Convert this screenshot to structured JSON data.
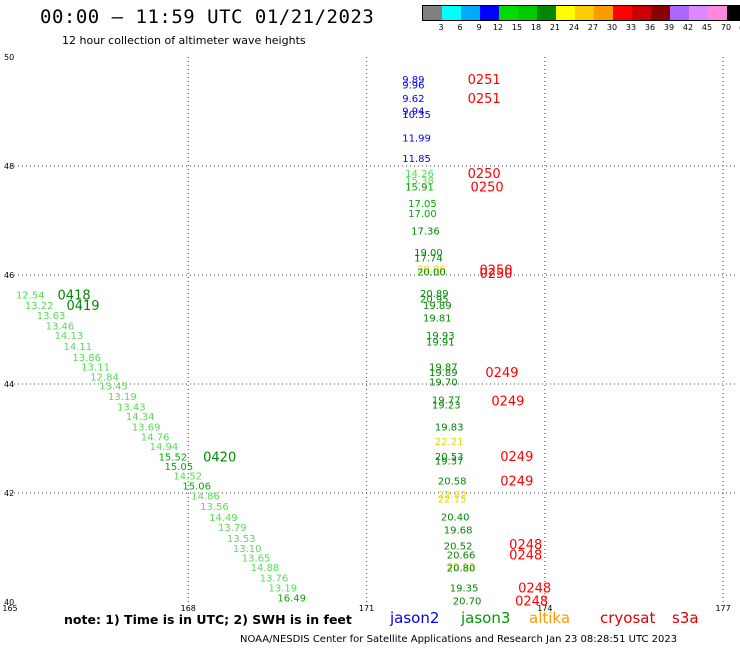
{
  "header": {
    "title": "00:00 – 11:59 UTC 01/21/2023",
    "subtitle": "12 hour collection of altimeter wave heights"
  },
  "legend": {
    "colors": [
      "#808080",
      "#00ffff",
      "#00aaff",
      "#0000ff",
      "#00dd00",
      "#00cc00",
      "#008800",
      "#ffff00",
      "#ffcc00",
      "#ff9900",
      "#ff0000",
      "#cc0000",
      "#880000",
      "#aa66ff",
      "#dd88ff",
      "#ff88dd",
      "#000000"
    ],
    "labels": [
      "3",
      "6",
      "9",
      "12",
      "15",
      "18",
      "21",
      "24",
      "27",
      "30",
      "33",
      "36",
      "39",
      "42",
      "45",
      "70",
      "(ft)"
    ]
  },
  "footer": {
    "note": "note:  1) Time is in UTC;  2) SWH is in feet",
    "credit": "NOAA/NESDIS Center for Satellite Applications and Research    Jan 23 08:28:51 UTC 2023"
  },
  "satellites": [
    {
      "name": "jason2",
      "color": "#0000ff"
    },
    {
      "name": "jason3",
      "color": "#009900"
    },
    {
      "name": "altika",
      "color": "#ff9900"
    },
    {
      "name": "cryosat",
      "color": "#dd0000"
    },
    {
      "name": "s3a",
      "color": "#dd0000"
    }
  ],
  "chart_data": {
    "type": "scatter",
    "xlabel": "",
    "ylabel": "",
    "xlim": [
      165,
      177.2
    ],
    "ylim": [
      40,
      50
    ],
    "x_ticks": [
      165,
      168,
      171,
      174,
      177
    ],
    "y_ticks": [
      40,
      42,
      44,
      46,
      48,
      50
    ],
    "grid": true,
    "points": [
      {
        "lon": 171.6,
        "lat": 49.6,
        "value": "9.89",
        "color": "#0000ff"
      },
      {
        "lon": 171.6,
        "lat": 49.5,
        "value": "9.96",
        "color": "#0000ff"
      },
      {
        "lon": 171.6,
        "lat": 49.25,
        "value": "9.62",
        "color": "#0000ff"
      },
      {
        "lon": 171.6,
        "lat": 49.02,
        "value": "9.94",
        "color": "#0000ff"
      },
      {
        "lon": 171.6,
        "lat": 48.95,
        "value": "10.35",
        "color": "#0000ff"
      },
      {
        "lon": 171.6,
        "lat": 48.52,
        "value": "11.99",
        "color": "#0000ff"
      },
      {
        "lon": 171.6,
        "lat": 48.15,
        "value": "11.85",
        "color": "#0000ff"
      },
      {
        "lon": 171.65,
        "lat": 47.87,
        "value": "14.26",
        "color": "#55dd55"
      },
      {
        "lon": 171.65,
        "lat": 47.74,
        "value": "15.38",
        "color": "#55dd55"
      },
      {
        "lon": 171.65,
        "lat": 47.62,
        "value": "15.91",
        "color": "#00aa00"
      },
      {
        "lon": 171.7,
        "lat": 47.32,
        "value": "17.05",
        "color": "#00aa00"
      },
      {
        "lon": 171.7,
        "lat": 47.14,
        "value": "17.00",
        "color": "#00aa00"
      },
      {
        "lon": 171.75,
        "lat": 46.82,
        "value": "17.36",
        "color": "#008800"
      },
      {
        "lon": 171.8,
        "lat": 46.42,
        "value": "19.00",
        "color": "#008800"
      },
      {
        "lon": 171.8,
        "lat": 46.32,
        "value": "17.74",
        "color": "#008800"
      },
      {
        "lon": 171.85,
        "lat": 46.12,
        "value": "20.06",
        "color": "#dddd00"
      },
      {
        "lon": 171.85,
        "lat": 46.06,
        "value": "20.00",
        "color": "#008800"
      },
      {
        "lon": 171.9,
        "lat": 45.67,
        "value": "20.89",
        "color": "#008800"
      },
      {
        "lon": 171.9,
        "lat": 45.57,
        "value": "20.95",
        "color": "#008800"
      },
      {
        "lon": 171.95,
        "lat": 45.45,
        "value": "19.89",
        "color": "#008800"
      },
      {
        "lon": 171.95,
        "lat": 45.22,
        "value": "19.81",
        "color": "#008800"
      },
      {
        "lon": 172.0,
        "lat": 44.9,
        "value": "19.93",
        "color": "#008800"
      },
      {
        "lon": 172.0,
        "lat": 44.78,
        "value": "19.91",
        "color": "#008800"
      },
      {
        "lon": 172.05,
        "lat": 44.32,
        "value": "19.87",
        "color": "#008800"
      },
      {
        "lon": 172.05,
        "lat": 44.22,
        "value": "19.89",
        "color": "#008800"
      },
      {
        "lon": 172.05,
        "lat": 44.05,
        "value": "19.70",
        "color": "#008800"
      },
      {
        "lon": 172.1,
        "lat": 43.72,
        "value": "19.77",
        "color": "#008800"
      },
      {
        "lon": 172.1,
        "lat": 43.62,
        "value": "19.23",
        "color": "#008800"
      },
      {
        "lon": 172.15,
        "lat": 43.22,
        "value": "19.83",
        "color": "#008800"
      },
      {
        "lon": 172.15,
        "lat": 42.95,
        "value": "22.21",
        "color": "#dddd00"
      },
      {
        "lon": 172.15,
        "lat": 42.68,
        "value": "20.53",
        "color": "#008800"
      },
      {
        "lon": 172.15,
        "lat": 42.6,
        "value": "19.37",
        "color": "#008800"
      },
      {
        "lon": 172.2,
        "lat": 42.23,
        "value": "20.58",
        "color": "#008800"
      },
      {
        "lon": 172.2,
        "lat": 41.98,
        "value": "22.82",
        "color": "#dddd00"
      },
      {
        "lon": 172.2,
        "lat": 41.9,
        "value": "22.15",
        "color": "#dddd00"
      },
      {
        "lon": 172.25,
        "lat": 41.57,
        "value": "20.40",
        "color": "#008800"
      },
      {
        "lon": 172.3,
        "lat": 41.33,
        "value": "19.68",
        "color": "#008800"
      },
      {
        "lon": 172.3,
        "lat": 41.04,
        "value": "20.52",
        "color": "#008800"
      },
      {
        "lon": 172.35,
        "lat": 40.87,
        "value": "20.66",
        "color": "#008800"
      },
      {
        "lon": 172.35,
        "lat": 40.66,
        "value": "20.92",
        "color": "#dddd00"
      },
      {
        "lon": 172.35,
        "lat": 40.63,
        "value": "20.80",
        "color": "#008800"
      },
      {
        "lon": 172.4,
        "lat": 40.27,
        "value": "19.35",
        "color": "#008800"
      },
      {
        "lon": 172.45,
        "lat": 40.03,
        "value": "20.70",
        "color": "#008800"
      },
      {
        "lon": 165.1,
        "lat": 45.64,
        "value": "12.54",
        "color": "#55dd55"
      },
      {
        "lon": 165.25,
        "lat": 45.45,
        "value": "13.22",
        "color": "#55dd55"
      },
      {
        "lon": 165.45,
        "lat": 45.27,
        "value": "13.63",
        "color": "#55dd55"
      },
      {
        "lon": 165.6,
        "lat": 45.07,
        "value": "13.46",
        "color": "#55dd55"
      },
      {
        "lon": 165.75,
        "lat": 44.9,
        "value": "14.13",
        "color": "#55dd55"
      },
      {
        "lon": 165.9,
        "lat": 44.7,
        "value": "14.11",
        "color": "#55dd55"
      },
      {
        "lon": 166.05,
        "lat": 44.5,
        "value": "13.86",
        "color": "#55dd55"
      },
      {
        "lon": 166.2,
        "lat": 44.32,
        "value": "13.11",
        "color": "#55dd55"
      },
      {
        "lon": 166.35,
        "lat": 44.14,
        "value": "12.84",
        "color": "#55dd55"
      },
      {
        "lon": 166.5,
        "lat": 43.97,
        "value": "13.45",
        "color": "#55dd55"
      },
      {
        "lon": 166.65,
        "lat": 43.78,
        "value": "13.19",
        "color": "#55dd55"
      },
      {
        "lon": 166.8,
        "lat": 43.59,
        "value": "13.43",
        "color": "#55dd55"
      },
      {
        "lon": 166.95,
        "lat": 43.41,
        "value": "14.34",
        "color": "#55dd55"
      },
      {
        "lon": 167.05,
        "lat": 43.22,
        "value": "13.69",
        "color": "#55dd55"
      },
      {
        "lon": 167.2,
        "lat": 43.04,
        "value": "14.76",
        "color": "#55dd55"
      },
      {
        "lon": 167.35,
        "lat": 42.86,
        "value": "14.94",
        "color": "#55dd55"
      },
      {
        "lon": 167.5,
        "lat": 42.67,
        "value": "15.52",
        "color": "#00aa00"
      },
      {
        "lon": 167.6,
        "lat": 42.5,
        "value": "15.05",
        "color": "#00aa00"
      },
      {
        "lon": 167.75,
        "lat": 42.32,
        "value": "14.52",
        "color": "#55dd55"
      },
      {
        "lon": 167.9,
        "lat": 42.14,
        "value": "15.06",
        "color": "#00aa00"
      },
      {
        "lon": 168.05,
        "lat": 41.95,
        "value": "14.86",
        "color": "#55dd55"
      },
      {
        "lon": 168.2,
        "lat": 41.76,
        "value": "13.56",
        "color": "#55dd55"
      },
      {
        "lon": 168.35,
        "lat": 41.56,
        "value": "14.49",
        "color": "#55dd55"
      },
      {
        "lon": 168.5,
        "lat": 41.38,
        "value": "13.79",
        "color": "#55dd55"
      },
      {
        "lon": 168.65,
        "lat": 41.17,
        "value": "13.53",
        "color": "#55dd55"
      },
      {
        "lon": 168.75,
        "lat": 40.99,
        "value": "13.10",
        "color": "#55dd55"
      },
      {
        "lon": 168.9,
        "lat": 40.82,
        "value": "13.65",
        "color": "#55dd55"
      },
      {
        "lon": 169.05,
        "lat": 40.64,
        "value": "14.88",
        "color": "#55dd55"
      },
      {
        "lon": 169.2,
        "lat": 40.45,
        "value": "13.76",
        "color": "#55dd55"
      },
      {
        "lon": 169.35,
        "lat": 40.27,
        "value": "13.19",
        "color": "#55dd55"
      },
      {
        "lon": 169.5,
        "lat": 40.08,
        "value": "16.49",
        "color": "#00aa00"
      }
    ],
    "time_labels": [
      {
        "lon": 172.7,
        "lat": 49.6,
        "value": "0251",
        "color": "#ff0000"
      },
      {
        "lon": 172.7,
        "lat": 49.25,
        "value": "0251",
        "color": "#ff0000"
      },
      {
        "lon": 172.7,
        "lat": 47.87,
        "value": "0250",
        "color": "#ff0000"
      },
      {
        "lon": 172.75,
        "lat": 47.62,
        "value": "0250",
        "color": "#ff0000"
      },
      {
        "lon": 172.9,
        "lat": 46.1,
        "value": "0250",
        "color": "#ff0000"
      },
      {
        "lon": 172.9,
        "lat": 46.04,
        "value": "0250",
        "color": "#ff0000"
      },
      {
        "lon": 173.0,
        "lat": 44.22,
        "value": "0249",
        "color": "#ff0000"
      },
      {
        "lon": 173.1,
        "lat": 43.7,
        "value": "0249",
        "color": "#ff0000"
      },
      {
        "lon": 173.25,
        "lat": 42.68,
        "value": "0249",
        "color": "#ff0000"
      },
      {
        "lon": 173.25,
        "lat": 42.23,
        "value": "0249",
        "color": "#ff0000"
      },
      {
        "lon": 173.4,
        "lat": 41.06,
        "value": "0248",
        "color": "#ff0000"
      },
      {
        "lon": 173.4,
        "lat": 40.87,
        "value": "0248",
        "color": "#ff0000"
      },
      {
        "lon": 173.55,
        "lat": 40.27,
        "value": "0248",
        "color": "#ff0000"
      },
      {
        "lon": 173.5,
        "lat": 40.03,
        "value": "0248",
        "color": "#ff0000"
      },
      {
        "lon": 165.8,
        "lat": 45.64,
        "value": "0418",
        "color": "#008800"
      },
      {
        "lon": 165.95,
        "lat": 45.45,
        "value": "0419",
        "color": "#008800"
      },
      {
        "lon": 168.25,
        "lat": 42.67,
        "value": "0420",
        "color": "#008800"
      }
    ]
  }
}
